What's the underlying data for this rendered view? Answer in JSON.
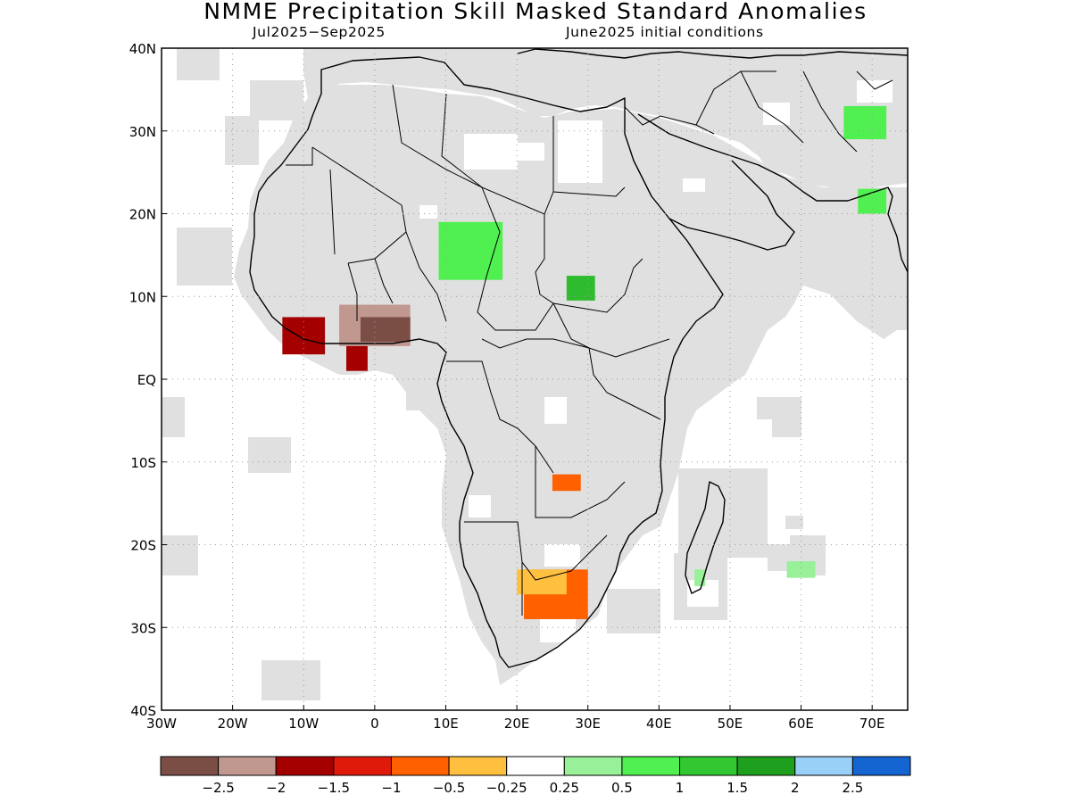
{
  "header": {
    "title": "NMME Precipitation Skill Masked Standard Anomalies",
    "season": "Jul2025−Sep2025",
    "initial_conditions": "June2025 initial conditions"
  },
  "map": {
    "lat_range": [
      -40,
      40
    ],
    "lon_range": [
      -30,
      75
    ],
    "lat_ticks": [
      {
        "value": 40,
        "label": "40N"
      },
      {
        "value": 30,
        "label": "30N"
      },
      {
        "value": 20,
        "label": "20N"
      },
      {
        "value": 10,
        "label": "10N"
      },
      {
        "value": 0,
        "label": "EQ"
      },
      {
        "value": -10,
        "label": "10S"
      },
      {
        "value": -20,
        "label": "20S"
      },
      {
        "value": -30,
        "label": "30S"
      },
      {
        "value": -40,
        "label": "40S"
      }
    ],
    "lon_ticks": [
      {
        "value": -30,
        "label": "30W"
      },
      {
        "value": -20,
        "label": "20W"
      },
      {
        "value": -10,
        "label": "10W"
      },
      {
        "value": 0,
        "label": "0"
      },
      {
        "value": 10,
        "label": "10E"
      },
      {
        "value": 20,
        "label": "20E"
      },
      {
        "value": 30,
        "label": "30E"
      },
      {
        "value": 40,
        "label": "40E"
      },
      {
        "value": 50,
        "label": "50E"
      },
      {
        "value": 60,
        "label": "60E"
      },
      {
        "value": 70,
        "label": "70E"
      }
    ],
    "masked_color": "#e0e0e0",
    "anomaly_regions": [
      {
        "name": "guinea-coast-dry",
        "class": "-2.5 to -2",
        "color": "#c09890",
        "lon": [
          -5,
          5
        ],
        "lat": [
          4,
          9
        ]
      },
      {
        "name": "guinea-coast-core",
        "class": "< -2.5",
        "color": "#7a4e45",
        "lon": [
          -2,
          5
        ],
        "lat": [
          4.5,
          7.5
        ]
      },
      {
        "name": "liberia-dry",
        "class": "-2 to -1.5",
        "color": "#a50000",
        "lon": [
          -13,
          -7
        ],
        "lat": [
          3,
          7.5
        ]
      },
      {
        "name": "ghana-dry",
        "class": "-2 to -1.5",
        "color": "#a50000",
        "lon": [
          -4,
          -1
        ],
        "lat": [
          1,
          4
        ]
      },
      {
        "name": "lake-chad-wet",
        "class": "1 to 1.5",
        "color": "#50f050",
        "lon": [
          9,
          18
        ],
        "lat": [
          12,
          19
        ]
      },
      {
        "name": "south-sudan-wet",
        "class": "1.5 to 2",
        "color": "#2ebc2e",
        "lon": [
          27,
          31
        ],
        "lat": [
          9.5,
          12.5
        ]
      },
      {
        "name": "zambia-dry",
        "class": "-1 to -0.5",
        "color": "#ff6000",
        "lon": [
          25,
          29
        ],
        "lat": [
          -13.5,
          -11.5
        ]
      },
      {
        "name": "south-africa-dry",
        "class": "-1 to -0.5",
        "color": "#ff6000",
        "lon": [
          21,
          30
        ],
        "lat": [
          -29,
          -23
        ]
      },
      {
        "name": "botswana-dry",
        "class": "-0.5 to -0.25",
        "color": "#ffc040",
        "lon": [
          20,
          27
        ],
        "lat": [
          -26,
          -23
        ]
      },
      {
        "name": "pakistan-wet",
        "class": "1 to 1.5",
        "color": "#50f050",
        "lon": [
          66,
          72
        ],
        "lat": [
          29,
          33
        ]
      },
      {
        "name": "india-wet",
        "class": "0.5 to 1",
        "color": "#50f050",
        "lon": [
          68,
          72
        ],
        "lat": [
          20,
          23
        ]
      },
      {
        "name": "madagascar-wet",
        "class": "0.25 to 0.5",
        "color": "#98f098",
        "lon": [
          45,
          46.5
        ],
        "lat": [
          -25,
          -23
        ]
      },
      {
        "name": "mascarene-wet",
        "class": "0.25 to 0.5",
        "color": "#98f098",
        "lon": [
          58,
          62
        ],
        "lat": [
          -24,
          -22
        ]
      }
    ]
  },
  "legend": {
    "colors": [
      "#7a4e45",
      "#c09890",
      "#a50000",
      "#e01a0a",
      "#ff6000",
      "#ffc040",
      "#ffffff",
      "#98f098",
      "#50f050",
      "#32c832",
      "#1ea01e",
      "#99d0f8",
      "#1464d2"
    ],
    "labels": [
      "−2.5",
      "−2",
      "−1.5",
      "−1",
      "−0.5",
      "−0.25",
      "0.25",
      "0.5",
      "1",
      "1.5",
      "2",
      "2.5"
    ]
  }
}
